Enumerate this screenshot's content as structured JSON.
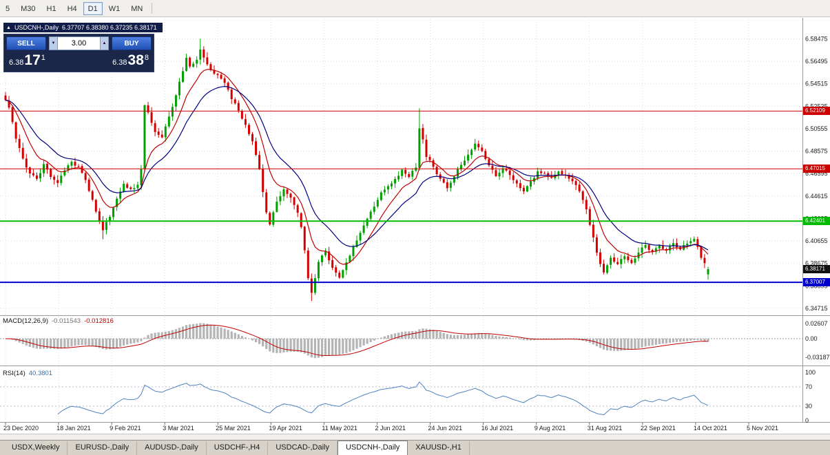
{
  "toolbar": {
    "timeframes": [
      {
        "label": "5",
        "active": false
      },
      {
        "label": "M30",
        "active": false
      },
      {
        "label": "H1",
        "active": false
      },
      {
        "label": "H4",
        "active": false
      },
      {
        "label": "D1",
        "active": true
      },
      {
        "label": "W1",
        "active": false
      },
      {
        "label": "MN",
        "active": false
      }
    ]
  },
  "chart_header": {
    "expand_icon": "▲",
    "title": "USDCNH-,Daily",
    "ohlc_text": "6.37707 6.38380 6.37235 6.38171"
  },
  "trade_panel": {
    "sell_label": "SELL",
    "buy_label": "BUY",
    "volume": "3.00",
    "spinner_up": "▲",
    "spinner_down": "▼",
    "sell_price": {
      "prefix": "6.38",
      "big": "17",
      "sup": "1"
    },
    "buy_price": {
      "prefix": "6.38",
      "big": "38",
      "sup": "8"
    }
  },
  "price_axis_labels": [
    "6.58475",
    "6.56495",
    "6.54515",
    "6.52535",
    "6.50555",
    "6.48575",
    "6.46595",
    "6.44615",
    "6.42635",
    "6.40655",
    "6.38675",
    "6.36695",
    "6.34715"
  ],
  "date_axis_labels": [
    "23 Dec 2020",
    "18 Jan 2021",
    "9 Feb 2021",
    "3 Mar 2021",
    "25 Mar 2021",
    "19 Apr 2021",
    "11 May 2021",
    "2 Jun 2021",
    "24 Jun 2021",
    "16 Jul 2021",
    "9 Aug 2021",
    "31 Aug 2021",
    "22 Sep 2021",
    "14 Oct 2021",
    "5 Nov 2021"
  ],
  "hlines": [
    {
      "price": 6.52109,
      "label": "6.52109",
      "color": "#cc0000",
      "width": 1
    },
    {
      "price": 6.47015,
      "label": "6.47015",
      "color": "#cc0000",
      "width": 1
    },
    {
      "price": 6.42401,
      "label": "6.42401",
      "color": "#00bb00",
      "width": 2
    },
    {
      "price": 6.37007,
      "label": "6.37007",
      "color": "#0000cc",
      "width": 2
    }
  ],
  "current_price_tag": {
    "price": 6.38171,
    "label": "6.38171",
    "color": "#111111"
  },
  "macd_panel": {
    "name": "MACD(12,26,9)",
    "value1": "-0.011543",
    "value2": "-0.012816",
    "axis_labels": [
      {
        "value": 0.02607,
        "label": "0.02607"
      },
      {
        "value": 0,
        "label": "0.00"
      },
      {
        "value": -0.03187,
        "label": "-0.03187"
      }
    ]
  },
  "rsi_panel": {
    "name": "RSI(14)",
    "value": "40.3801",
    "axis_labels": [
      {
        "value": 100,
        "label": "100"
      },
      {
        "value": 70,
        "label": "70"
      },
      {
        "value": 30,
        "label": "30"
      },
      {
        "value": 0,
        "label": "0"
      }
    ],
    "levels": [
      30,
      70
    ]
  },
  "tabs": [
    {
      "label": "USDX,Weekly",
      "active": false
    },
    {
      "label": "EURUSD-,Daily",
      "active": false
    },
    {
      "label": "AUDUSD-,Daily",
      "active": false
    },
    {
      "label": "USDCHF-,H4",
      "active": false
    },
    {
      "label": "USDCAD-,Daily",
      "active": false
    },
    {
      "label": "USDCNH-,Daily",
      "active": true
    },
    {
      "label": "XAUUSD-,H1",
      "active": false
    }
  ],
  "chart_data": {
    "type": "candlestick",
    "symbol": "USDCNH-",
    "timeframe": "Daily",
    "title": "USDCNH-,Daily",
    "y_range": [
      6.341,
      6.599
    ],
    "bar_count": 203,
    "last_bar": {
      "open": 6.37707,
      "high": 6.3838,
      "low": 6.37235,
      "close": 6.38171
    },
    "horizontal_levels": [
      6.52109,
      6.47015,
      6.42401,
      6.37007
    ],
    "close_anchors": [
      [
        0,
        6.531
      ],
      [
        1,
        6.524
      ],
      [
        3,
        6.497
      ],
      [
        5,
        6.479
      ],
      [
        7,
        6.466
      ],
      [
        9,
        6.461
      ],
      [
        11,
        6.474
      ],
      [
        13,
        6.463
      ],
      [
        15,
        6.458
      ],
      [
        17,
        6.469
      ],
      [
        19,
        6.476
      ],
      [
        21,
        6.472
      ],
      [
        23,
        6.46
      ],
      [
        25,
        6.443
      ],
      [
        27,
        6.424
      ],
      [
        28,
        6.416
      ],
      [
        30,
        6.428
      ],
      [
        32,
        6.444
      ],
      [
        34,
        6.457
      ],
      [
        36,
        6.452
      ],
      [
        38,
        6.456
      ],
      [
        39,
        6.47
      ],
      [
        40,
        6.526
      ],
      [
        41,
        6.52
      ],
      [
        43,
        6.503
      ],
      [
        45,
        6.498
      ],
      [
        47,
        6.516
      ],
      [
        49,
        6.535
      ],
      [
        51,
        6.556
      ],
      [
        52,
        6.568
      ],
      [
        53,
        6.56
      ],
      [
        55,
        6.566
      ],
      [
        56,
        6.575
      ],
      [
        57,
        6.568
      ],
      [
        59,
        6.557
      ],
      [
        61,
        6.553
      ],
      [
        63,
        6.546
      ],
      [
        65,
        6.532
      ],
      [
        67,
        6.522
      ],
      [
        69,
        6.509
      ],
      [
        71,
        6.494
      ],
      [
        73,
        6.47
      ],
      [
        74,
        6.45
      ],
      [
        75,
        6.432
      ],
      [
        76,
        6.421
      ],
      [
        78,
        6.441
      ],
      [
        80,
        6.452
      ],
      [
        82,
        6.445
      ],
      [
        84,
        6.431
      ],
      [
        85,
        6.419
      ],
      [
        86,
        6.398
      ],
      [
        87,
        6.374
      ],
      [
        88,
        6.361
      ],
      [
        89,
        6.374
      ],
      [
        90,
        6.388
      ],
      [
        92,
        6.398
      ],
      [
        94,
        6.383
      ],
      [
        96,
        6.374
      ],
      [
        98,
        6.388
      ],
      [
        100,
        6.401
      ],
      [
        102,
        6.414
      ],
      [
        104,
        6.426
      ],
      [
        106,
        6.437
      ],
      [
        108,
        6.449
      ],
      [
        110,
        6.455
      ],
      [
        112,
        6.461
      ],
      [
        114,
        6.469
      ],
      [
        116,
        6.463
      ],
      [
        118,
        6.471
      ],
      [
        119,
        6.506
      ],
      [
        120,
        6.496
      ],
      [
        121,
        6.481
      ],
      [
        123,
        6.472
      ],
      [
        125,
        6.461
      ],
      [
        127,
        6.453
      ],
      [
        129,
        6.463
      ],
      [
        131,
        6.474
      ],
      [
        133,
        6.483
      ],
      [
        135,
        6.492
      ],
      [
        137,
        6.486
      ],
      [
        139,
        6.473
      ],
      [
        141,
        6.464
      ],
      [
        143,
        6.471
      ],
      [
        145,
        6.465
      ],
      [
        147,
        6.457
      ],
      [
        149,
        6.45
      ],
      [
        151,
        6.459
      ],
      [
        153,
        6.468
      ],
      [
        155,
        6.466
      ],
      [
        157,
        6.462
      ],
      [
        159,
        6.468
      ],
      [
        161,
        6.464
      ],
      [
        163,
        6.459
      ],
      [
        165,
        6.45
      ],
      [
        167,
        6.434
      ],
      [
        169,
        6.41
      ],
      [
        170,
        6.396
      ],
      [
        171,
        6.386
      ],
      [
        172,
        6.379
      ],
      [
        174,
        6.392
      ],
      [
        176,
        6.386
      ],
      [
        178,
        6.393
      ],
      [
        180,
        6.387
      ],
      [
        182,
        6.396
      ],
      [
        184,
        6.403
      ],
      [
        186,
        6.397
      ],
      [
        188,
        6.403
      ],
      [
        190,
        6.398
      ],
      [
        192,
        6.405
      ],
      [
        194,
        6.399
      ],
      [
        196,
        6.404
      ],
      [
        198,
        6.408
      ],
      [
        199,
        6.401
      ],
      [
        200,
        6.392
      ],
      [
        201,
        6.387
      ],
      [
        202,
        6.3817
      ]
    ],
    "extreme_bars": [
      {
        "i": 28,
        "low": 6.408
      },
      {
        "i": 56,
        "high": 6.585
      },
      {
        "i": 88,
        "low": 6.3535
      },
      {
        "i": 119,
        "high": 6.5235
      }
    ],
    "overlays": {
      "ma_fast_period": 9,
      "ma_slow_period": 19
    },
    "indicators": {
      "macd": {
        "params": "12,26,9",
        "last_main": -0.011543,
        "last_signal": -0.012816,
        "axis_max": 0.02607,
        "axis_min": -0.03187
      },
      "rsi": {
        "period": 14,
        "last": 40.3801,
        "levels": [
          30,
          70
        ],
        "range": [
          0,
          100
        ]
      }
    }
  },
  "colors": {
    "bull": "#00a000",
    "bear": "#d40000",
    "ma_fast": "#c00000",
    "ma_slow": "#000080",
    "macd_hist": "#b4b4b4",
    "macd_signal": "#c00000",
    "rsi_line": "#4f81bd",
    "grid": "#dcdcdc",
    "axis_text": "#1a1a1a",
    "separator": "#9a9a9a"
  }
}
